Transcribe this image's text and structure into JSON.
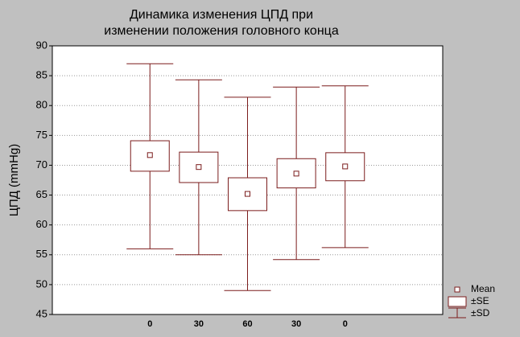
{
  "chart_data": {
    "type": "box",
    "title": [
      "Динамика изменения ЦПД при",
      "изменении положения головного конца"
    ],
    "y_label": "ЦПД (mmHg)",
    "categories": [
      null,
      null,
      "0",
      "30",
      "60",
      "30",
      "0",
      null
    ],
    "ylim": [
      45,
      90
    ],
    "yticks": [
      45,
      50,
      55,
      60,
      65,
      70,
      75,
      80,
      85,
      90
    ],
    "grid": true,
    "color": "#7b1c1c",
    "series": [
      {
        "name": "Mean",
        "values": [
          null,
          null,
          71.7,
          69.7,
          65.2,
          68.6,
          69.8,
          null
        ]
      },
      {
        "name": "±SE",
        "low": [
          null,
          null,
          69.0,
          67.1,
          62.4,
          66.2,
          67.4,
          null
        ],
        "high": [
          null,
          null,
          74.1,
          72.2,
          67.9,
          71.1,
          72.1,
          null
        ]
      },
      {
        "name": "±SD",
        "low": [
          null,
          null,
          56.0,
          55.0,
          49.0,
          54.2,
          56.2,
          null
        ],
        "high": [
          null,
          null,
          87.0,
          84.3,
          81.4,
          83.1,
          83.3,
          null
        ]
      }
    ]
  }
}
